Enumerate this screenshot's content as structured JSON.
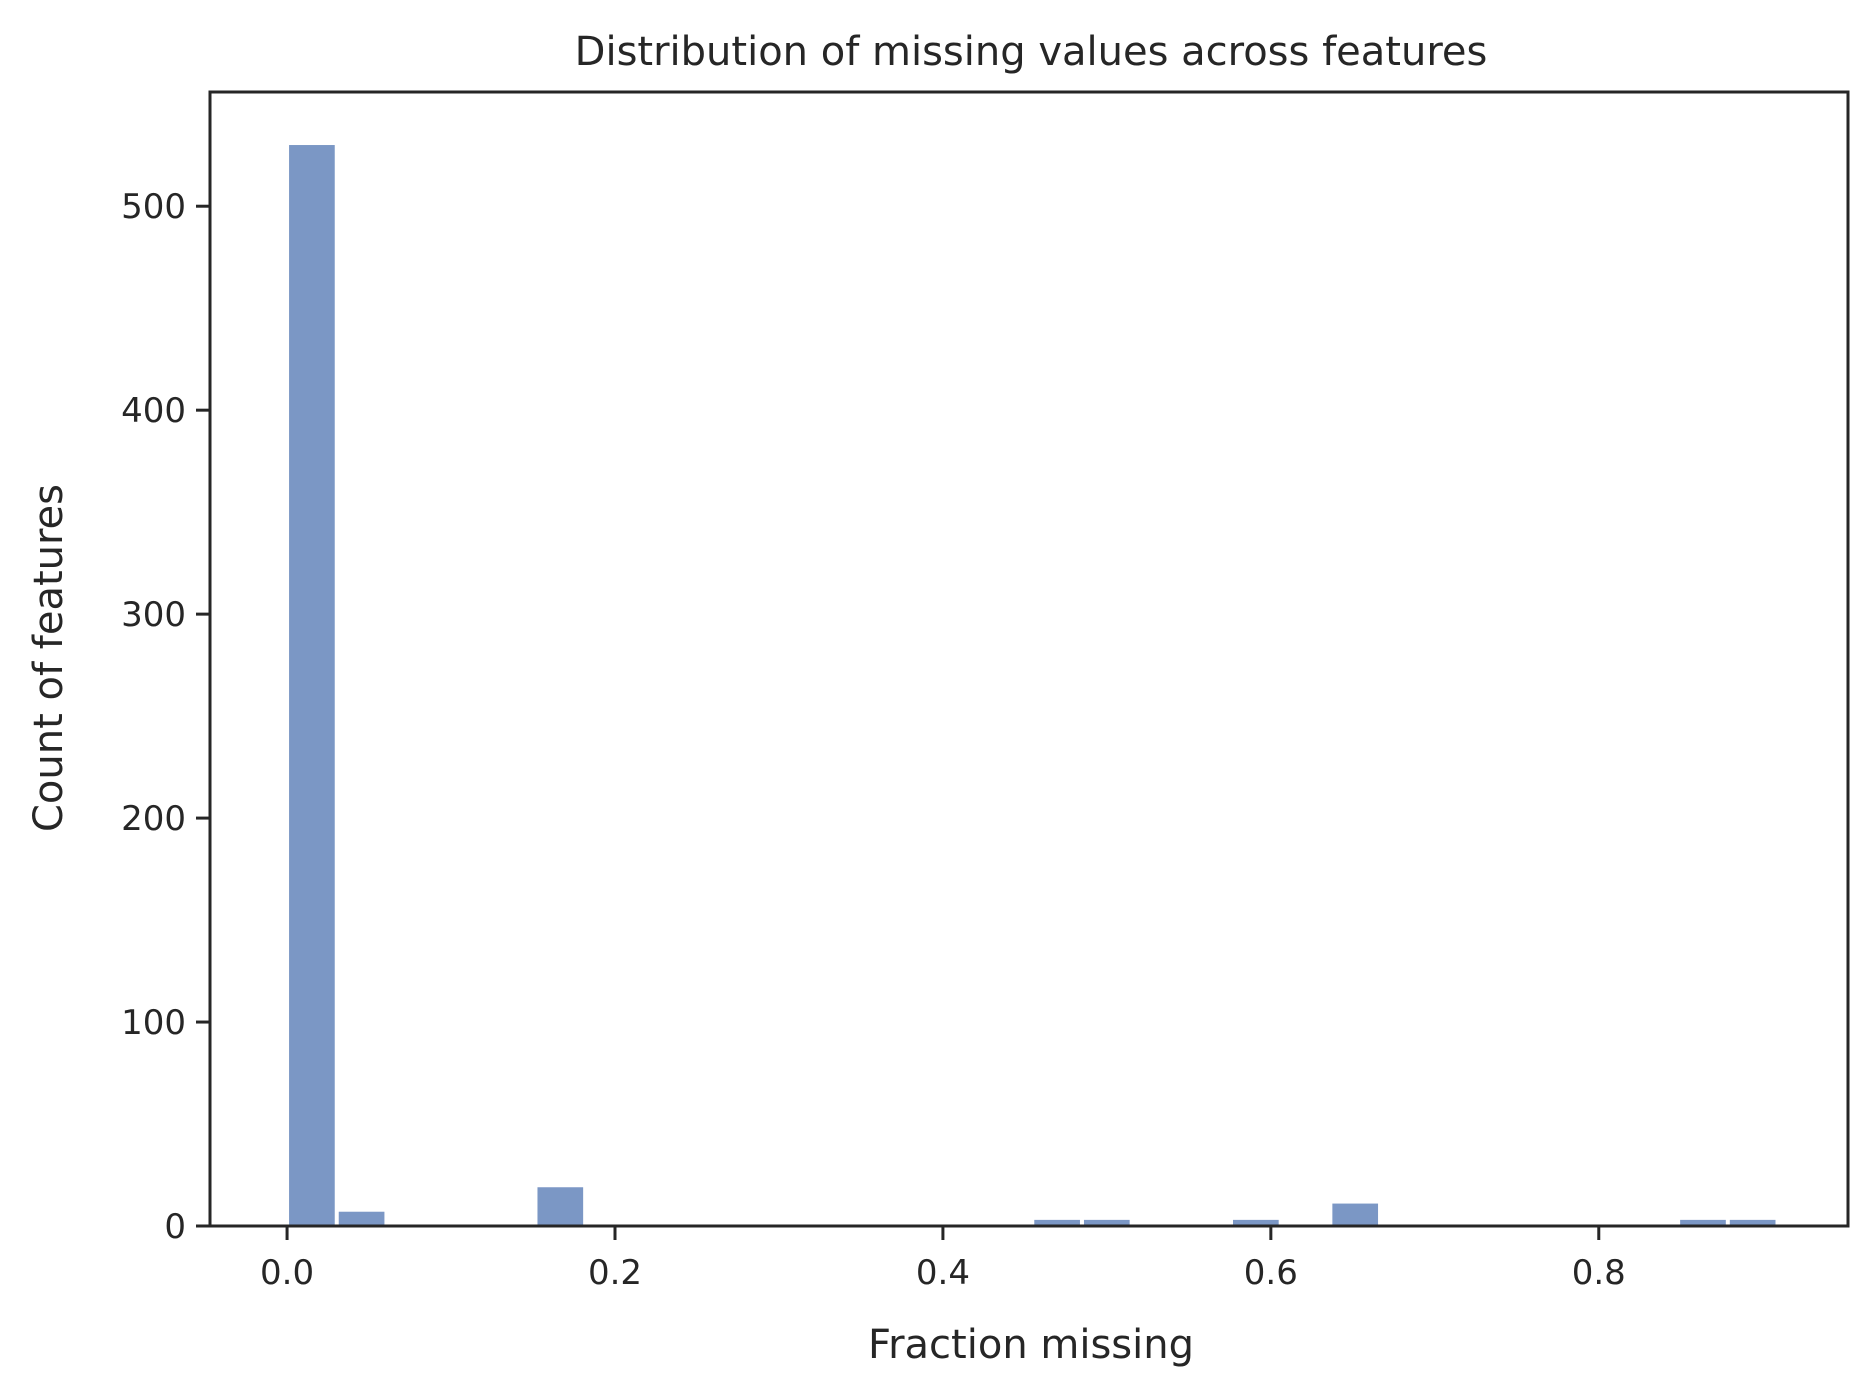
{
  "chart_data": {
    "type": "histogram",
    "title": "Distribution of missing values across features",
    "xlabel": "Fraction missing",
    "ylabel": "Count of features",
    "xlim": [
      -0.047,
      0.952
    ],
    "ylim": [
      0,
      556
    ],
    "xticks": [
      0.0,
      0.2,
      0.4,
      0.6,
      0.8
    ],
    "xtick_labels": [
      "0.0",
      "0.2",
      "0.4",
      "0.6",
      "0.8"
    ],
    "yticks": [
      0,
      100,
      200,
      300,
      400,
      500
    ],
    "ytick_labels": [
      "0",
      "100",
      "200",
      "300",
      "400",
      "500"
    ],
    "grid": false,
    "bar_color": "#7b97c5",
    "axis_color": "#262626",
    "bins": [
      {
        "x0": 0.0,
        "x1": 0.0303,
        "count": 530
      },
      {
        "x0": 0.0303,
        "x1": 0.0606,
        "count": 7
      },
      {
        "x0": 0.1515,
        "x1": 0.1818,
        "count": 19
      },
      {
        "x0": 0.4545,
        "x1": 0.4848,
        "count": 3
      },
      {
        "x0": 0.4848,
        "x1": 0.5151,
        "count": 3
      },
      {
        "x0": 0.5757,
        "x1": 0.606,
        "count": 3
      },
      {
        "x0": 0.6363,
        "x1": 0.6666,
        "count": 11
      },
      {
        "x0": 0.8484,
        "x1": 0.8787,
        "count": 3
      },
      {
        "x0": 0.8787,
        "x1": 0.909,
        "count": 3
      }
    ]
  }
}
